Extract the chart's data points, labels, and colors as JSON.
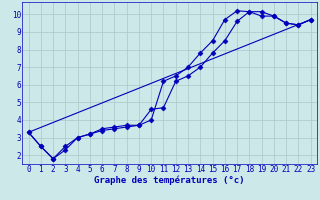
{
  "title": "Graphe des températures (°c)",
  "bg_color": "#cce8e8",
  "grid_color": "#aac8c8",
  "line_color": "#0000bb",
  "xlim": [
    -0.5,
    23.5
  ],
  "ylim": [
    1.5,
    10.7
  ],
  "xticks": [
    0,
    1,
    2,
    3,
    4,
    5,
    6,
    7,
    8,
    9,
    10,
    11,
    12,
    13,
    14,
    15,
    16,
    17,
    18,
    19,
    20,
    21,
    22,
    23
  ],
  "yticks": [
    2,
    3,
    4,
    5,
    6,
    7,
    8,
    9,
    10
  ],
  "series1_x": [
    0,
    1,
    2,
    3,
    4,
    5,
    6,
    7,
    8,
    9,
    10,
    11,
    12,
    13,
    14,
    15,
    16,
    17,
    18,
    19,
    20,
    21,
    22,
    23
  ],
  "series1_y": [
    3.3,
    2.5,
    1.8,
    2.3,
    3.0,
    3.2,
    3.4,
    3.5,
    3.6,
    3.7,
    4.6,
    4.7,
    6.2,
    6.5,
    7.0,
    7.8,
    8.5,
    9.6,
    10.15,
    10.15,
    9.9,
    9.5,
    9.4,
    9.7
  ],
  "series2_x": [
    0,
    1,
    2,
    3,
    4,
    5,
    6,
    7,
    8,
    9,
    10,
    11,
    12,
    13,
    14,
    15,
    16,
    17,
    18,
    19,
    20,
    21,
    22,
    23
  ],
  "series2_y": [
    3.3,
    2.5,
    1.8,
    2.5,
    3.0,
    3.2,
    3.5,
    3.6,
    3.7,
    3.7,
    4.0,
    6.2,
    6.5,
    7.0,
    7.8,
    8.5,
    9.7,
    10.2,
    10.15,
    9.9,
    9.9,
    9.5,
    9.4,
    9.7
  ],
  "series3_x": [
    0,
    23
  ],
  "series3_y": [
    3.3,
    9.7
  ],
  "marker": "D",
  "marker_size": 2.5,
  "linewidth": 0.8,
  "xlabel_fontsize": 6.5,
  "tick_fontsize": 5.5,
  "xlabel_bold": true
}
